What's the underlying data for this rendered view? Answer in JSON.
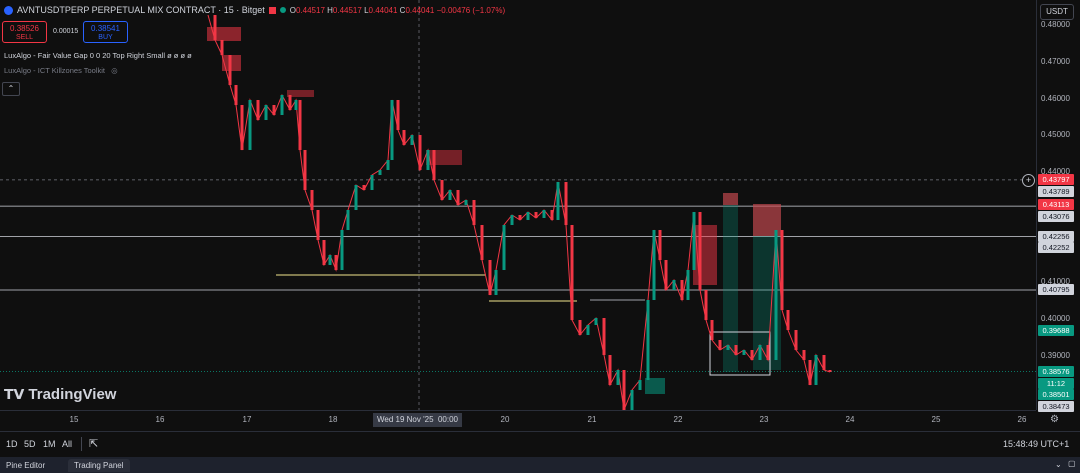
{
  "header": {
    "symbol": "AVNTUSDTPERP PERPETUAL MIX CONTRACT · 15 · Bitget",
    "ohlc": {
      "o_label": "O",
      "o": "0.44517",
      "h_label": "H",
      "h": "0.44517",
      "l_label": "L",
      "l": "0.44041",
      "c_label": "C",
      "c": "0.44041",
      "change": "−0.00476 (−1.07%)"
    },
    "sell_price": "0.38526",
    "sell_label": "SELL",
    "spread": "0.00015",
    "buy_price": "0.38541",
    "buy_label": "BUY",
    "indicator1": "LuxAlgo - Fair Value Gap 0 0 20 Top Right Small ø ø ø ø",
    "indicator2": "LuxAlgo - ICT Killzones Toolkit",
    "collapse_icon": "chevron-up-icon"
  },
  "currency_button": "USDT",
  "price_axis": {
    "ticks": [
      {
        "label": "0.48000",
        "value": 0.48
      },
      {
        "label": "0.47000",
        "value": 0.47
      },
      {
        "label": "0.46000",
        "value": 0.46
      },
      {
        "label": "0.45000",
        "value": 0.45
      },
      {
        "label": "0.44000",
        "value": 0.44
      },
      {
        "label": "0.42000",
        "value": 0.42
      },
      {
        "label": "0.41000",
        "value": 0.41
      },
      {
        "label": "0.40000",
        "value": 0.4
      },
      {
        "label": "0.39000",
        "value": 0.39
      }
    ],
    "tags": [
      {
        "label": "0.43797",
        "value": 0.43797,
        "bg": "#f23645",
        "fg": "#ffffff"
      },
      {
        "label": "0.43789",
        "value": 0.43789,
        "bg": "#d1d4dc",
        "fg": "#131722"
      },
      {
        "label": "0.43113",
        "value": 0.43113,
        "bg": "#f23645",
        "fg": "#ffffff"
      },
      {
        "label": "0.43076",
        "value": 0.43076,
        "bg": "#d1d4dc",
        "fg": "#131722"
      },
      {
        "label": "0.42256",
        "value": 0.42256,
        "bg": "#d1d4dc",
        "fg": "#131722"
      },
      {
        "label": "0.42252",
        "value": 0.42252,
        "bg": "#d1d4dc",
        "fg": "#131722"
      },
      {
        "label": "0.40795",
        "value": 0.40795,
        "bg": "#d1d4dc",
        "fg": "#131722"
      },
      {
        "label": "0.39688",
        "value": 0.39688,
        "bg": "#089981",
        "fg": "#ffffff"
      },
      {
        "label": "0.38576",
        "value": 0.38576,
        "bg": "#089981",
        "fg": "#ffffff"
      },
      {
        "label": "11:12",
        "value": 0.38576,
        "bg": "#089981",
        "fg": "#ffffff"
      },
      {
        "label": "0.38501",
        "value": 0.38501,
        "bg": "#089981",
        "fg": "#ffffff"
      },
      {
        "label": "0.38473",
        "value": 0.38473,
        "bg": "#d1d4dc",
        "fg": "#131722"
      }
    ]
  },
  "time_axis": {
    "labels": [
      "15",
      "16",
      "17",
      "18",
      "20",
      "21",
      "22",
      "23",
      "24",
      "25",
      "26"
    ],
    "crosshair_label": "Wed 19 Nov '25",
    "crosshair_time": "00:00"
  },
  "bottom_bar": {
    "ranges": [
      "1D",
      "5D",
      "1M",
      "All"
    ],
    "clock": "15:48:49 UTC+1"
  },
  "panel_tabs": [
    "Pine Editor",
    "Trading Panel"
  ],
  "watermark": "TradingView",
  "colors": {
    "up": "#089981",
    "down": "#f23645",
    "bg": "#0f0f0f",
    "line": "#d1d4dc",
    "yellow": "#f0e68c"
  }
}
